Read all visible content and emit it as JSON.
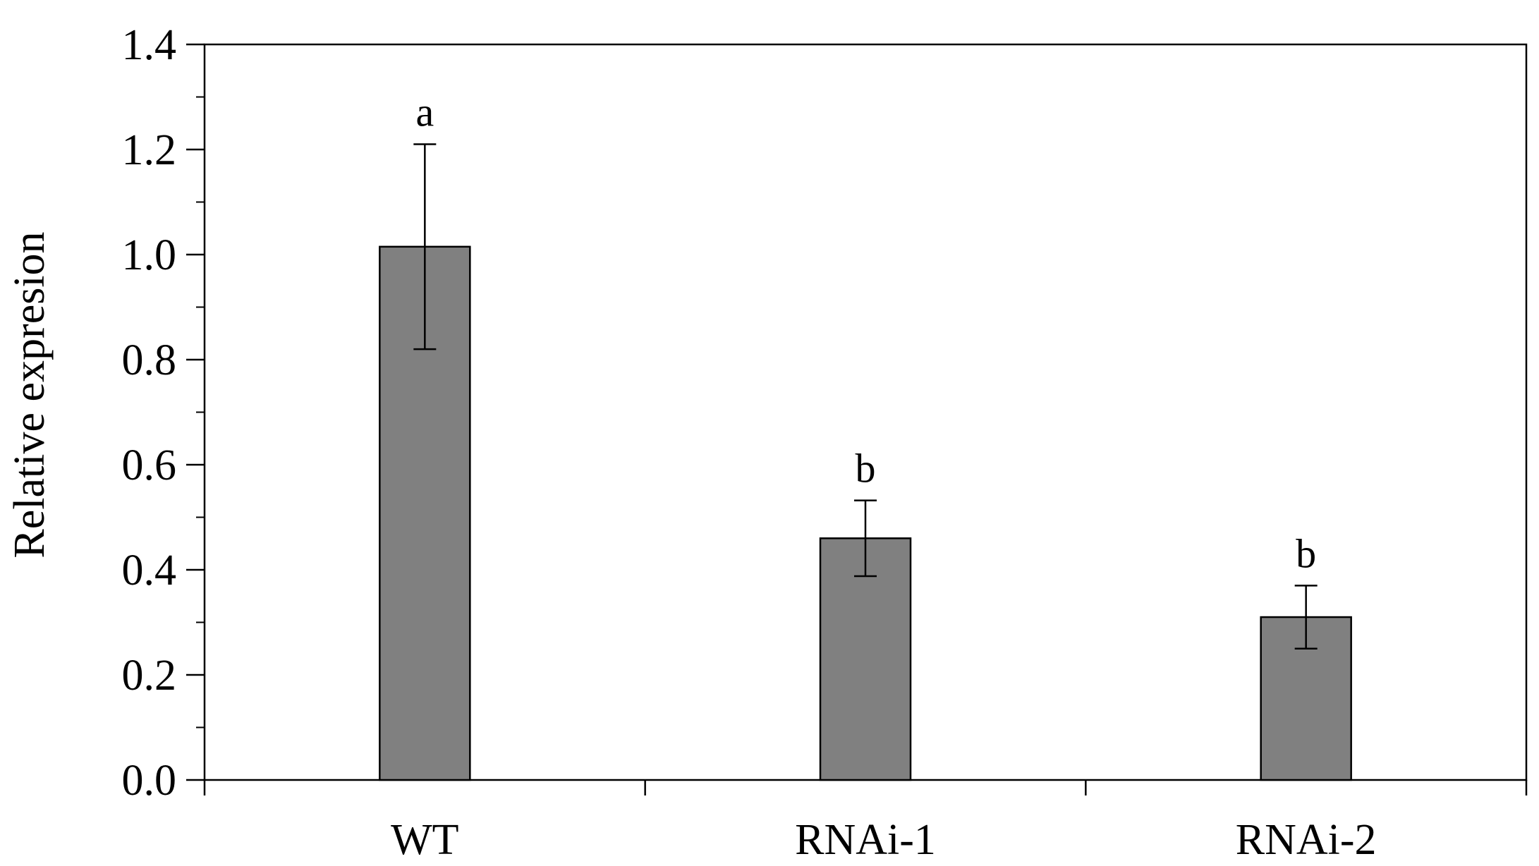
{
  "chart_data": {
    "type": "bar",
    "categories": [
      "WT",
      "RNAi-1",
      "RNAi-2"
    ],
    "values": [
      1.015,
      0.46,
      0.31
    ],
    "errors": [
      0.195,
      0.072,
      0.06
    ],
    "significance": [
      "a",
      "b",
      "b"
    ],
    "ylabel": "Relative expresion",
    "xlabel": "",
    "title": "",
    "ylim": [
      0.0,
      1.4
    ],
    "yticks": [
      "0.0",
      "0.2",
      "0.4",
      "0.6",
      "0.8",
      "1.0",
      "1.2",
      "1.4"
    ],
    "grid": false,
    "legend": "none",
    "colors": {
      "bar_fill": "#808080",
      "bar_stroke": "#000000",
      "axis": "#000000",
      "text": "#000000"
    }
  }
}
